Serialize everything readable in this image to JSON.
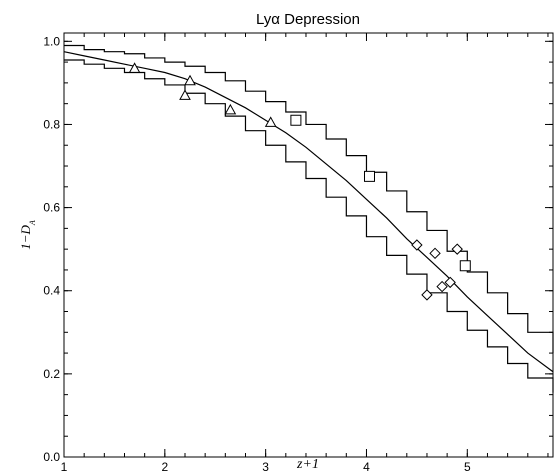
{
  "chart_data": {
    "type": "line",
    "title": "Lyα Depression",
    "xlabel": "z+1",
    "ylabel": "1−D_A",
    "ylabel_main": "1−D",
    "ylabel_sub": "A",
    "xlim": [
      1,
      5.85
    ],
    "ylim": [
      0,
      1.02
    ],
    "xticks": [
      1,
      2,
      3,
      4,
      5
    ],
    "yticks": [
      0.0,
      0.2,
      0.4,
      0.6,
      0.8,
      1.0
    ],
    "ytick_labels": [
      "0.0",
      "0.2",
      "0.4",
      "0.6",
      "0.8",
      "1.0"
    ],
    "xtick_labels": [
      "1",
      "2",
      "3",
      "4",
      "5"
    ],
    "grid": false,
    "colors": {
      "line": "#000000",
      "background": "#ffffff"
    },
    "series": [
      {
        "style": "line",
        "x": [
          1.0,
          1.2,
          1.4,
          1.6,
          1.8,
          2.0,
          2.2,
          2.4,
          2.6,
          2.8,
          3.0,
          3.2,
          3.4,
          3.6,
          3.8,
          4.0,
          4.2,
          4.4,
          4.6,
          4.8,
          5.0,
          5.2,
          5.4,
          5.6,
          5.85
        ],
        "y": [
          0.975,
          0.965,
          0.955,
          0.945,
          0.935,
          0.925,
          0.91,
          0.89,
          0.865,
          0.84,
          0.81,
          0.78,
          0.745,
          0.705,
          0.665,
          0.62,
          0.575,
          0.525,
          0.48,
          0.435,
          0.385,
          0.34,
          0.295,
          0.25,
          0.205
        ]
      },
      {
        "style": "step",
        "x": [
          1.0,
          1.2,
          1.4,
          1.6,
          1.8,
          2.0,
          2.2,
          2.4,
          2.6,
          2.8,
          3.0,
          3.2,
          3.4,
          3.6,
          3.8,
          4.0,
          4.2,
          4.4,
          4.6,
          4.8,
          5.0,
          5.2,
          5.4,
          5.6,
          5.85
        ],
        "y": [
          0.99,
          0.98,
          0.975,
          0.97,
          0.96,
          0.95,
          0.94,
          0.925,
          0.905,
          0.88,
          0.855,
          0.83,
          0.8,
          0.765,
          0.725,
          0.685,
          0.64,
          0.59,
          0.545,
          0.495,
          0.445,
          0.395,
          0.345,
          0.3,
          0.25
        ]
      },
      {
        "style": "step",
        "x": [
          1.0,
          1.2,
          1.4,
          1.6,
          1.8,
          2.0,
          2.2,
          2.4,
          2.6,
          2.8,
          3.0,
          3.2,
          3.4,
          3.6,
          3.8,
          4.0,
          4.2,
          4.4,
          4.6,
          4.8,
          5.0,
          5.2,
          5.4,
          5.6,
          5.85
        ],
        "y": [
          0.955,
          0.945,
          0.935,
          0.925,
          0.91,
          0.895,
          0.875,
          0.85,
          0.82,
          0.785,
          0.75,
          0.71,
          0.67,
          0.625,
          0.58,
          0.53,
          0.485,
          0.44,
          0.395,
          0.35,
          0.305,
          0.265,
          0.225,
          0.19,
          0.155
        ]
      }
    ],
    "markers": [
      {
        "shape": "triangle",
        "points": [
          [
            1.7,
            0.935
          ],
          [
            2.2,
            0.87
          ],
          [
            2.25,
            0.905
          ],
          [
            2.65,
            0.835
          ],
          [
            3.05,
            0.805
          ]
        ]
      },
      {
        "shape": "square",
        "points": [
          [
            3.3,
            0.81
          ],
          [
            4.03,
            0.675
          ],
          [
            4.98,
            0.46
          ]
        ]
      },
      {
        "shape": "diamond",
        "points": [
          [
            4.5,
            0.51
          ],
          [
            4.6,
            0.39
          ],
          [
            4.68,
            0.49
          ],
          [
            4.75,
            0.41
          ],
          [
            4.83,
            0.42
          ],
          [
            4.9,
            0.5
          ]
        ]
      }
    ]
  }
}
